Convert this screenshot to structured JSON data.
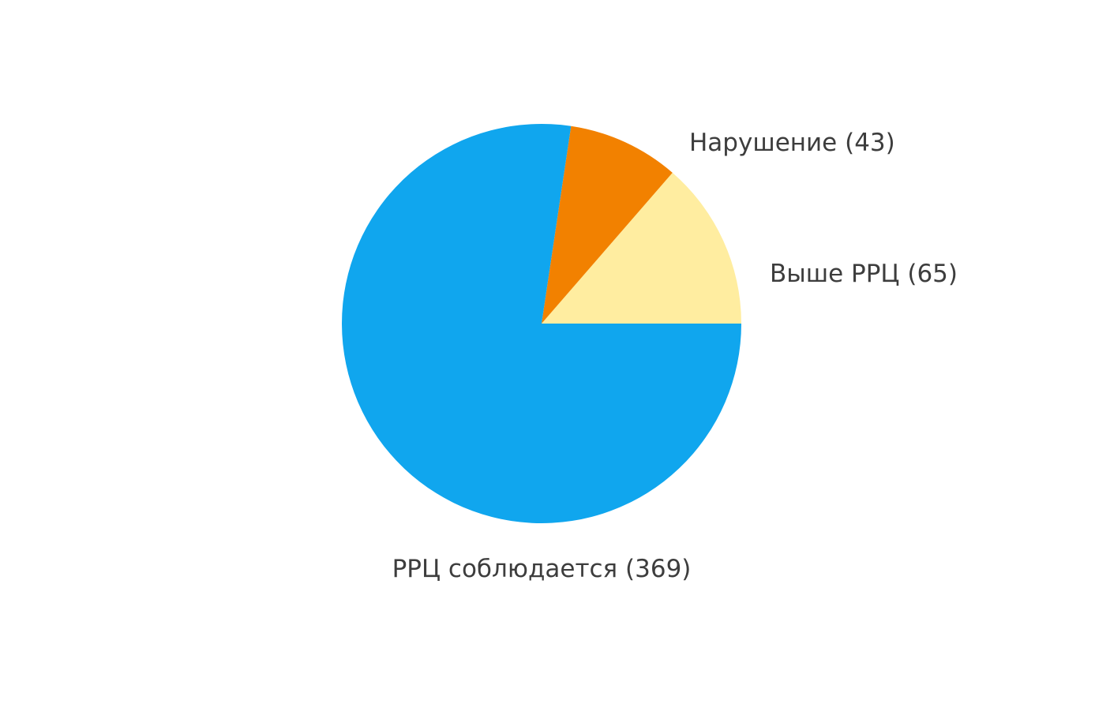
{
  "chart_data": {
    "type": "pie",
    "title": "",
    "start": "3 o'clock",
    "direction": "counter-clockwise",
    "slices": [
      {
        "name": "Выше РРЦ",
        "value": 65,
        "label": "Выше РРЦ (65)",
        "color": "#FFEDA0"
      },
      {
        "name": "Нарушение",
        "value": 43,
        "label": "Нарушение (43)",
        "color": "#F28100"
      },
      {
        "name": "РРЦ соблюдается",
        "value": 369,
        "label": "РРЦ соблюдается (369)",
        "color": "#10A6EE"
      }
    ],
    "legend": "none"
  }
}
